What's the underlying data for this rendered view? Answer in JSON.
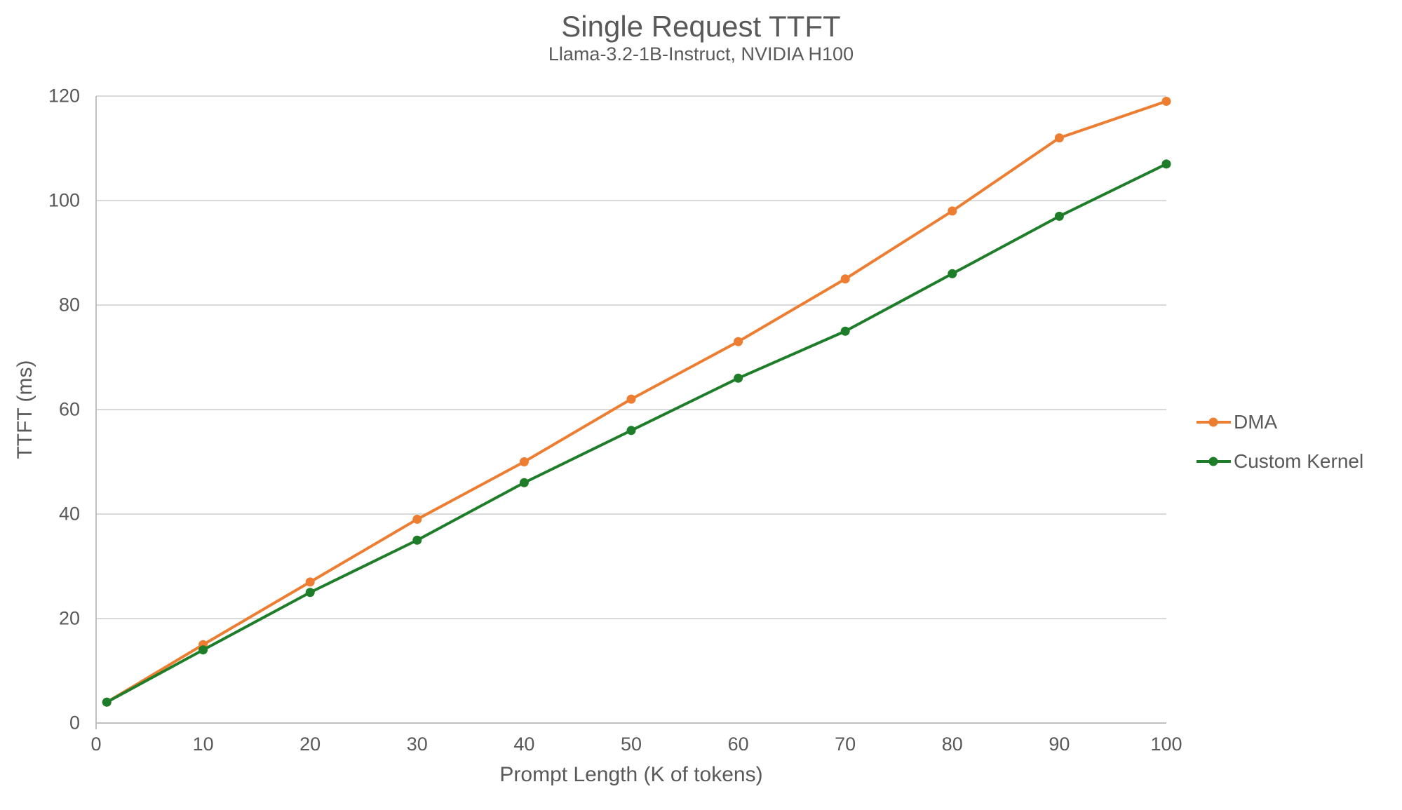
{
  "chart_data": {
    "type": "line",
    "title": "Single Request TTFT",
    "subtitle": "Llama-3.2-1B-Instruct, NVIDIA H100",
    "xlabel": "Prompt Length (K of tokens)",
    "ylabel": "TTFT (ms)",
    "x": [
      1,
      10,
      20,
      30,
      40,
      50,
      60,
      70,
      80,
      90,
      100
    ],
    "series": [
      {
        "name": "DMA",
        "color": "#ED7D31",
        "values": [
          4,
          15,
          27,
          39,
          50,
          62,
          73,
          85,
          98,
          112,
          119
        ]
      },
      {
        "name": "Custom Kernel",
        "color": "#1E7D28",
        "values": [
          4,
          14,
          25,
          35,
          46,
          56,
          66,
          75,
          86,
          97,
          107
        ]
      }
    ],
    "xlim": [
      0,
      100
    ],
    "ylim": [
      0,
      120
    ],
    "x_ticks": [
      0,
      10,
      20,
      30,
      40,
      50,
      60,
      70,
      80,
      90,
      100
    ],
    "y_ticks": [
      0,
      20,
      40,
      60,
      80,
      100,
      120
    ],
    "grid": "horizontal",
    "legend_position": "right",
    "style": {
      "grid_color": "#D9D9D9",
      "axis_color": "#C0C0C0",
      "text_color": "#595959",
      "line_width": 4,
      "marker_radius": 6.5
    }
  }
}
